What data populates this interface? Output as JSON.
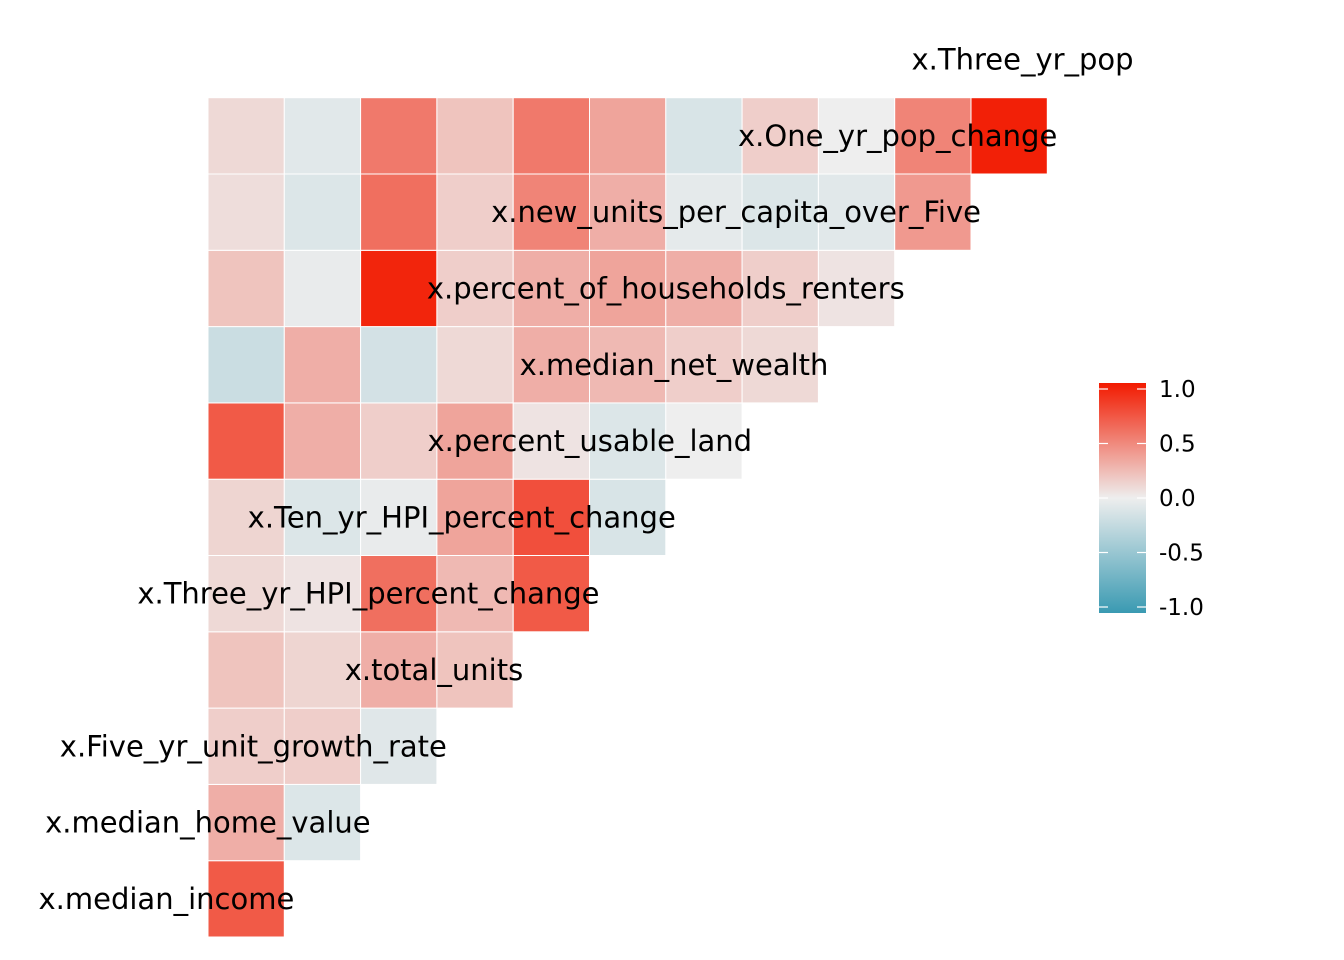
{
  "chart_data": {
    "type": "heatmap",
    "subtype": "lower-triangular correlation matrix",
    "title": "",
    "xlabel": "",
    "ylabel": "",
    "variables": [
      "median_income",
      "median_home_value",
      "Five_yr_unit_growth_rate",
      "total_units",
      "Three_yr_HPI_percent_change",
      "Ten_yr_HPI_percent_change",
      "percent_usable_land",
      "median_net_wealth",
      "percent_of_households_renters",
      "new_units_per_capita_over_Five",
      "One_yr_pop_change",
      "Three_yr_pop"
    ],
    "variable_labels": [
      "x.median_income",
      "x.median_home_value",
      "x.Five_yr_unit_growth_rate",
      "x.total_units",
      "x.Three_yr_HPI_percent_change",
      "x.Ten_yr_HPI_percent_change",
      "x.percent_usable_land",
      "x.median_net_wealth",
      "x.percent_of_households_renters",
      "x.new_units_per_capita_over_Five",
      "x.One_yr_pop_change",
      "x.Three_yr_pop"
    ],
    "rows": [
      [
        0.7
      ],
      [
        0.3,
        -0.1
      ],
      [
        0.15,
        0.15,
        -0.08
      ],
      [
        0.2,
        0.12,
        0.3,
        0.2
      ],
      [
        0.1,
        0.05,
        0.6,
        0.25,
        0.7
      ],
      [
        0.12,
        -0.1,
        -0.03,
        0.35,
        0.75,
        -0.12
      ],
      [
        0.7,
        0.3,
        0.15,
        0.35,
        0.05,
        -0.1,
        0.0
      ],
      [
        -0.2,
        0.3,
        -0.15,
        0.1,
        0.3,
        0.25,
        0.15,
        0.1
      ],
      [
        0.2,
        -0.03,
        0.95,
        0.15,
        0.3,
        0.35,
        0.3,
        0.15,
        0.05
      ],
      [
        0.08,
        -0.1,
        0.6,
        0.15,
        0.5,
        0.3,
        -0.05,
        -0.1,
        -0.07,
        0.4
      ],
      [
        0.1,
        -0.07,
        0.55,
        0.2,
        0.55,
        0.35,
        -0.12,
        0.15,
        0.0,
        0.5,
        0.97
      ]
    ],
    "legend": {
      "ticks": [
        "1.0",
        "0.5",
        "0.0",
        "-0.5",
        "-1.0"
      ],
      "range": [
        -1,
        1
      ],
      "placement": "right"
    },
    "colors": {
      "low": "#3A9AB2",
      "mid": "#EEEEEE",
      "high": "#F21A00"
    }
  }
}
